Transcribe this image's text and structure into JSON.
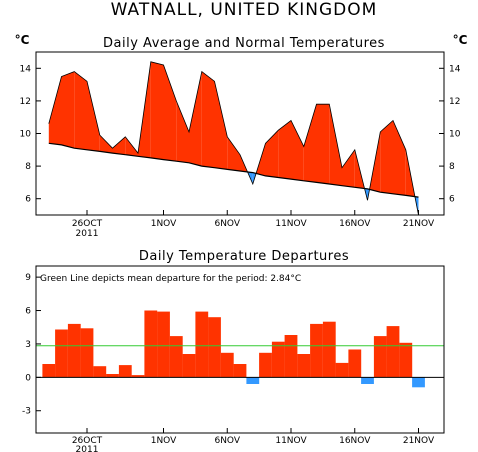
{
  "page": {
    "title": "WATNALL, UNITED KINGDOM"
  },
  "chart_data": [
    {
      "type": "area",
      "title": "Daily Average and Normal Temperatures",
      "ylabel_left": "°C",
      "ylabel_right": "°C",
      "ylim": [
        5,
        15
      ],
      "xlim": [
        0,
        32
      ],
      "yticks": [
        6,
        8,
        10,
        12,
        14
      ],
      "xticks": [
        {
          "x": 4,
          "label": "26OCT",
          "sublabel": "2011"
        },
        {
          "x": 10,
          "label": "1NOV"
        },
        {
          "x": 15,
          "label": "6NOV"
        },
        {
          "x": 20,
          "label": "11NOV"
        },
        {
          "x": 25,
          "label": "16NOV"
        },
        {
          "x": 30,
          "label": "21NOV"
        }
      ],
      "grid": false,
      "series": [
        {
          "role": "observed",
          "values": [
            10.6,
            13.5,
            13.8,
            13.2,
            9.9,
            9.1,
            9.8,
            8.8,
            14.4,
            14.2,
            12.0,
            10.1,
            13.8,
            13.2,
            9.8,
            8.7,
            6.9,
            9.4,
            10.2,
            10.8,
            9.2,
            11.8,
            11.8,
            7.9,
            9.0,
            5.9,
            10.1,
            10.8,
            9.0,
            5.0
          ]
        },
        {
          "role": "normal",
          "values": [
            9.4,
            9.3,
            9.1,
            9.0,
            8.9,
            8.8,
            8.7,
            8.6,
            8.5,
            8.4,
            8.3,
            8.2,
            8.0,
            7.9,
            7.8,
            7.7,
            7.6,
            7.4,
            7.3,
            7.2,
            7.1,
            7.0,
            6.9,
            6.8,
            6.7,
            6.6,
            6.4,
            6.3,
            6.2,
            6.1
          ]
        }
      ],
      "colors": {
        "above": "#ff3300",
        "below": "#3399ff",
        "line": "#000000"
      }
    },
    {
      "type": "bar",
      "title": "Daily Temperature Departures",
      "annotation": "Green Line depicts mean departure for the period: 2.84°C",
      "ylim": [
        -5,
        10
      ],
      "xlim": [
        0,
        32
      ],
      "yticks": [
        9,
        6,
        3,
        0,
        -3
      ],
      "xticks": [
        {
          "x": 4,
          "label": "26OCT",
          "sublabel": "2011"
        },
        {
          "x": 10,
          "label": "1NOV"
        },
        {
          "x": 15,
          "label": "6NOV"
        },
        {
          "x": 20,
          "label": "11NOV"
        },
        {
          "x": 25,
          "label": "16NOV"
        },
        {
          "x": 30,
          "label": "21NOV"
        }
      ],
      "mean_departure": 2.84,
      "values": [
        1.2,
        4.3,
        4.8,
        4.4,
        1.0,
        0.3,
        1.1,
        0.2,
        6.0,
        5.9,
        3.7,
        2.1,
        5.9,
        5.4,
        2.2,
        1.2,
        -0.6,
        2.2,
        3.2,
        3.8,
        2.1,
        4.8,
        5.0,
        1.3,
        2.5,
        -0.6,
        3.7,
        4.6,
        3.1,
        -0.9
      ],
      "colors": {
        "positive": "#ff3300",
        "negative": "#3399ff",
        "mean_line": "#33cc33"
      }
    }
  ]
}
